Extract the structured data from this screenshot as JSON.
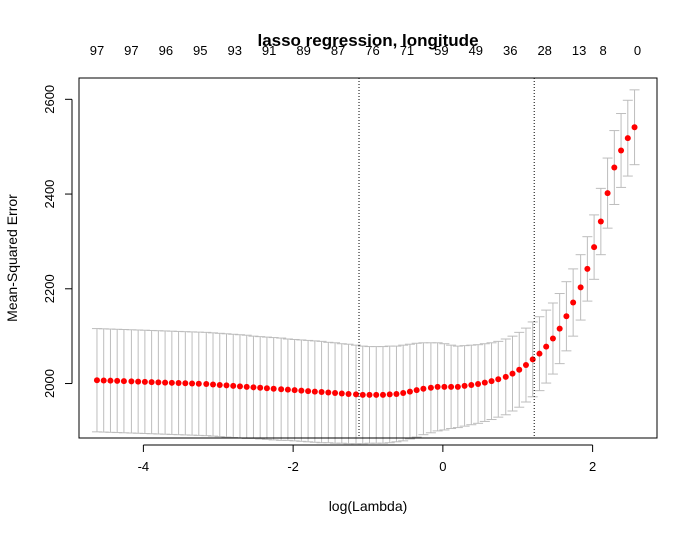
{
  "chart_data": {
    "type": "scatter",
    "title": "lasso regression, longitude",
    "xlabel": "log(Lambda)",
    "ylabel": "Mean-Squared Error",
    "xlim": [
      -4.86,
      2.86
    ],
    "ylim": [
      1885,
      2645
    ],
    "x_ticks": [
      "-4",
      "-2",
      "0",
      "2"
    ],
    "y_ticks": [
      "2000",
      "2200",
      "2400",
      "2600"
    ],
    "top_ticks": [
      {
        "x": -4.62,
        "label": "97"
      },
      {
        "x": -4.16,
        "label": "97"
      },
      {
        "x": -3.7,
        "label": "96"
      },
      {
        "x": -3.24,
        "label": "95"
      },
      {
        "x": -2.78,
        "label": "93"
      },
      {
        "x": -2.32,
        "label": "91"
      },
      {
        "x": -1.86,
        "label": "89"
      },
      {
        "x": -1.4,
        "label": "87"
      },
      {
        "x": -0.94,
        "label": "76"
      },
      {
        "x": -0.48,
        "label": "71"
      },
      {
        "x": -0.02,
        "label": "59"
      },
      {
        "x": 0.44,
        "label": "49"
      },
      {
        "x": 0.9,
        "label": "36"
      },
      {
        "x": 1.36,
        "label": "28"
      },
      {
        "x": 1.82,
        "label": "13"
      },
      {
        "x": 2.14,
        "label": "8"
      },
      {
        "x": 2.6,
        "label": "0"
      }
    ],
    "vlines": [
      -1.12,
      1.22
    ],
    "x": [
      -4.62,
      -4.53,
      -4.44,
      -4.35,
      -4.26,
      -4.16,
      -4.07,
      -3.98,
      -3.89,
      -3.8,
      -3.71,
      -3.62,
      -3.53,
      -3.44,
      -3.35,
      -3.26,
      -3.16,
      -3.07,
      -2.98,
      -2.89,
      -2.8,
      -2.71,
      -2.62,
      -2.53,
      -2.44,
      -2.35,
      -2.26,
      -2.16,
      -2.07,
      -1.98,
      -1.89,
      -1.8,
      -1.71,
      -1.62,
      -1.53,
      -1.44,
      -1.35,
      -1.26,
      -1.16,
      -1.07,
      -0.98,
      -0.89,
      -0.8,
      -0.71,
      -0.62,
      -0.53,
      -0.44,
      -0.35,
      -0.26,
      -0.16,
      -0.07,
      0.02,
      0.11,
      0.2,
      0.29,
      0.38,
      0.47,
      0.56,
      0.65,
      0.74,
      0.84,
      0.93,
      1.02,
      1.11,
      1.2,
      1.29,
      1.38,
      1.47,
      1.56,
      1.65,
      1.74,
      1.84,
      1.93,
      2.02,
      2.11,
      2.2,
      2.29,
      2.38,
      2.47,
      2.56
    ],
    "mse": [
      2007,
      2006.5,
      2006,
      2005.5,
      2005,
      2004.5,
      2004,
      2003.5,
      2003,
      2002.5,
      2002,
      2001.5,
      2001,
      2000.5,
      2000,
      1999.5,
      1999,
      1998,
      1997,
      1996,
      1995,
      1994,
      1993,
      1992,
      1991,
      1990,
      1989,
      1988,
      1987,
      1986,
      1985,
      1984,
      1983,
      1982,
      1981,
      1980,
      1979,
      1978,
      1977,
      1976,
      1976,
      1976,
      1976,
      1977,
      1978,
      1980,
      1983,
      1986,
      1989,
      1991,
      1993,
      1993,
      1993,
      1993,
      1995,
      1997,
      1999,
      2002,
      2005,
      2009,
      2014,
      2021,
      2029,
      2039,
      2051,
      2063,
      2078,
      2095,
      2116,
      2142,
      2171,
      2203,
      2242,
      2288,
      2342,
      2402,
      2456,
      2492,
      2518,
      2541
    ],
    "se": [
      109,
      109,
      109,
      109,
      109,
      109,
      109,
      109,
      109,
      109,
      109,
      109,
      109,
      109,
      109,
      109,
      109,
      109,
      109,
      109,
      109,
      109,
      109,
      108,
      108,
      108,
      108,
      108,
      107,
      107,
      107,
      107,
      107,
      107,
      106,
      106,
      105,
      105,
      104,
      103,
      102,
      102,
      102,
      102,
      101,
      101,
      100,
      99,
      97,
      95,
      93,
      91,
      88,
      86,
      85,
      84,
      83,
      82,
      81,
      80,
      80,
      79,
      79,
      78,
      79,
      78,
      77,
      75,
      74,
      73,
      71,
      69,
      68,
      68,
      70,
      74,
      78,
      78,
      80,
      79
    ]
  }
}
